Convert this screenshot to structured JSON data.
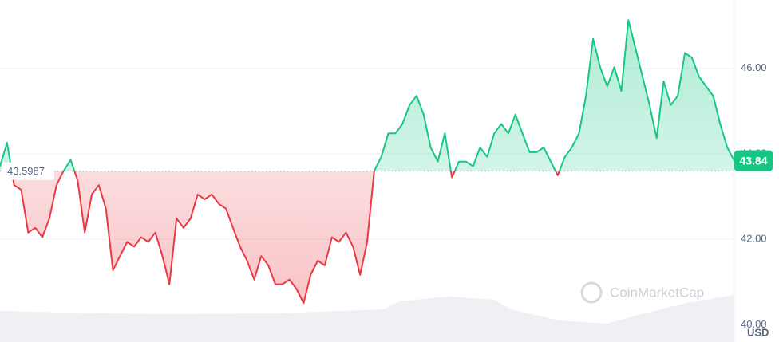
{
  "chart_data": {
    "type": "line",
    "values": [
      43.71,
      44.26,
      43.27,
      43.16,
      42.16,
      42.27,
      42.05,
      42.49,
      43.27,
      43.6,
      43.86,
      43.38,
      42.16,
      43.05,
      43.27,
      42.72,
      41.28,
      41.61,
      41.94,
      41.83,
      42.05,
      41.94,
      42.16,
      41.61,
      40.95,
      42.49,
      42.27,
      42.49,
      43.05,
      42.94,
      43.05,
      42.83,
      42.72,
      42.27,
      41.83,
      41.5,
      41.06,
      41.61,
      41.39,
      40.95,
      40.95,
      41.06,
      40.84,
      40.51,
      41.17,
      41.5,
      41.39,
      42.05,
      41.94,
      42.16,
      41.83,
      41.17,
      41.94,
      43.6,
      43.93,
      44.48,
      44.48,
      44.7,
      45.14,
      45.36,
      44.92,
      44.15,
      43.82,
      44.48,
      43.45,
      43.82,
      43.82,
      43.71,
      44.15,
      43.93,
      44.48,
      44.7,
      44.48,
      44.92,
      44.48,
      44.04,
      44.04,
      44.15,
      43.82,
      43.5,
      43.93,
      44.15,
      44.48,
      45.36,
      46.69,
      46.03,
      45.58,
      46.03,
      45.47,
      47.13,
      46.47,
      45.81,
      45.14,
      44.37,
      45.7,
      45.14,
      45.36,
      46.36,
      46.25,
      45.81,
      45.58,
      45.36,
      44.7,
      44.15,
      43.84
    ],
    "baseline": 43.5987,
    "ylim": [
      39.6,
      47.6
    ],
    "yticks": [
      {
        "value": 40,
        "label": "40.00"
      },
      {
        "value": 42,
        "label": "42.00"
      },
      {
        "value": 44,
        "label": "44.00"
      },
      {
        "value": 46,
        "label": "46.00"
      }
    ],
    "up_color": "#16c784",
    "down_color": "#ea3943",
    "grid": true,
    "currency": "USD",
    "watermark": "CoinMarketCap"
  }
}
